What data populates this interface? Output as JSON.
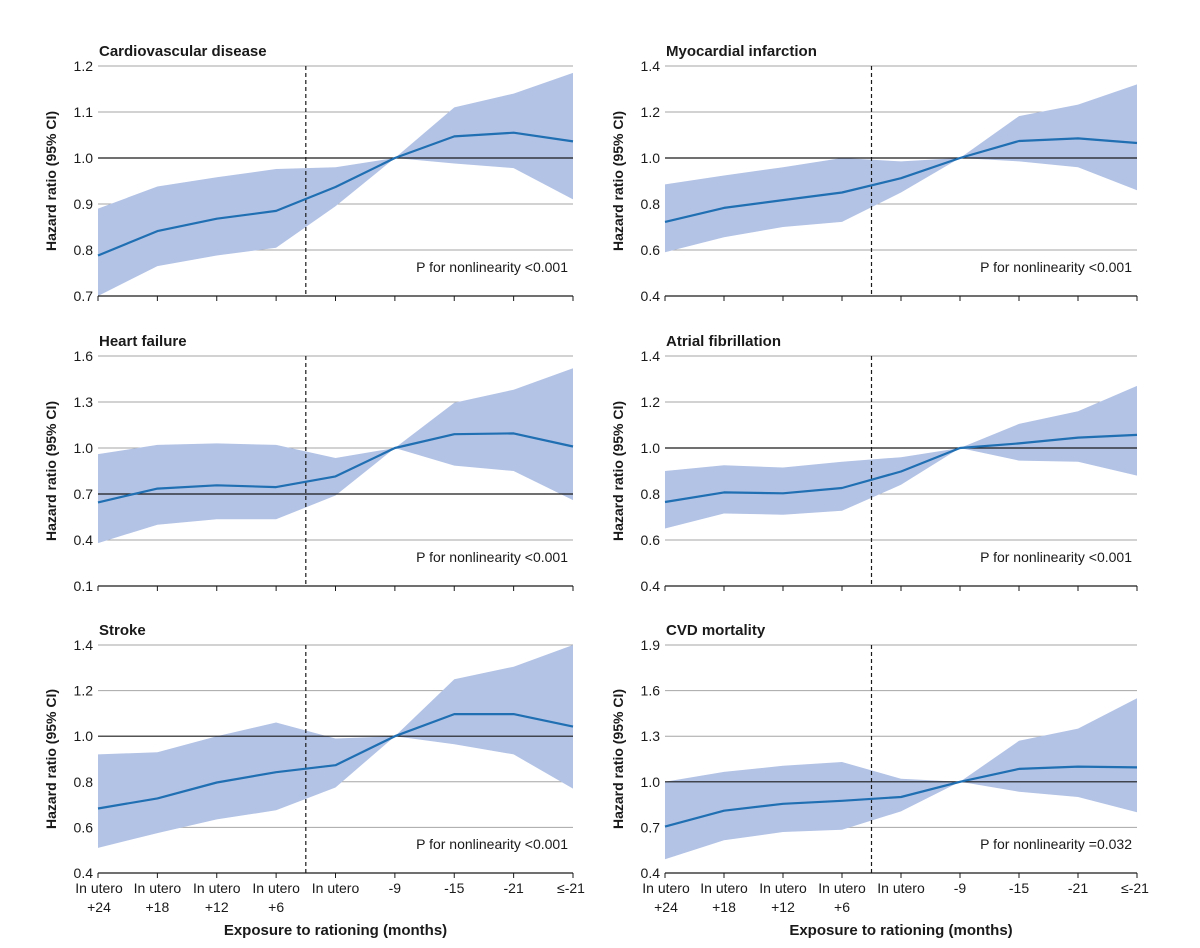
{
  "figure": {
    "xlabel": "Exposure to rationing (months)",
    "x_tick_lines": [
      [
        "In utero",
        "+24"
      ],
      [
        "In utero",
        "+18"
      ],
      [
        "In utero",
        "+12"
      ],
      [
        "In utero",
        "+6"
      ],
      [
        "In utero",
        ""
      ],
      [
        "-9",
        ""
      ],
      [
        "-15",
        ""
      ],
      [
        "-21",
        ""
      ],
      [
        "≤-21",
        ""
      ]
    ],
    "colors": {
      "line": "#1f6fb2",
      "band": "#b3c3e6",
      "grid": "#a6a6a6",
      "reference": "#1a1a1a"
    }
  },
  "chart_data": [
    {
      "type": "line",
      "title": "Cardiovascular disease",
      "ylabel": "Hazard ratio (95% CI)",
      "xlabel": "Exposure to rationing (months)",
      "categories": [
        "In utero +24",
        "In utero +18",
        "In utero +12",
        "In utero +6",
        "In utero",
        "-9",
        "-15",
        "-21",
        "≤-21"
      ],
      "series": [
        {
          "name": "Hazard ratio",
          "values": [
            0.788,
            0.841,
            0.868,
            0.885,
            0.937,
            1.0,
            1.047,
            1.055,
            1.036
          ]
        },
        {
          "name": "Lower 95% CI",
          "values": [
            0.7,
            0.765,
            0.788,
            0.805,
            0.895,
            1.0,
            0.988,
            0.978,
            0.91
          ]
        },
        {
          "name": "Upper 95% CI",
          "values": [
            0.89,
            0.938,
            0.958,
            0.976,
            0.98,
            1.0,
            1.11,
            1.14,
            1.185
          ]
        }
      ],
      "ylim": [
        0.7,
        1.2
      ],
      "yticks": [
        "0.7",
        "0.8",
        "0.9",
        "1.0",
        "1.1",
        "1.2"
      ],
      "reference_line": 1.0,
      "annotation": "P for nonlinearity <0.001"
    },
    {
      "type": "line",
      "title": "Myocardial infarction",
      "ylabel": "Hazard ratio (95% CI)",
      "xlabel": "Exposure to rationing (months)",
      "categories": [
        "In utero +24",
        "In utero +18",
        "In utero +12",
        "In utero +6",
        "In utero",
        "-9",
        "-15",
        "-21",
        "≤-21"
      ],
      "series": [
        {
          "name": "Hazard ratio",
          "values": [
            0.722,
            0.783,
            0.817,
            0.85,
            0.912,
            1.0,
            1.074,
            1.085,
            1.065
          ]
        },
        {
          "name": "Lower 95% CI",
          "values": [
            0.59,
            0.655,
            0.7,
            0.722,
            0.85,
            1.0,
            0.985,
            0.96,
            0.86
          ]
        },
        {
          "name": "Upper 95% CI",
          "values": [
            0.885,
            0.924,
            0.96,
            1.0,
            0.985,
            1.0,
            1.182,
            1.232,
            1.32
          ]
        }
      ],
      "ylim": [
        0.4,
        1.4
      ],
      "yticks": [
        "0.4",
        "0.6",
        "0.8",
        "1.0",
        "1.2",
        "1.4"
      ],
      "reference_line": 1.0,
      "annotation": "P for nonlinearity <0.001"
    },
    {
      "type": "line",
      "title": "Heart failure",
      "ylabel": "Hazard ratio (95% CI)",
      "xlabel": "Exposure to rationing (months)",
      "categories": [
        "In utero +24",
        "In utero +18",
        "In utero +12",
        "In utero +6",
        "In utero",
        "-9",
        "-15",
        "-21",
        "≤-21"
      ],
      "series": [
        {
          "name": "Hazard ratio",
          "values": [
            0.645,
            0.735,
            0.757,
            0.745,
            0.815,
            1.0,
            1.09,
            1.095,
            1.01
          ]
        },
        {
          "name": "Lower 95% CI",
          "values": [
            0.38,
            0.5,
            0.535,
            0.535,
            0.69,
            1.0,
            0.885,
            0.85,
            0.66
          ]
        },
        {
          "name": "Upper 95% CI",
          "values": [
            0.96,
            1.02,
            1.03,
            1.02,
            0.935,
            1.0,
            1.295,
            1.38,
            1.52
          ]
        }
      ],
      "ylim": [
        0.1,
        1.6
      ],
      "yticks": [
        "0.1",
        "0.4",
        "0.7",
        "1.0",
        "1.3",
        "1.6"
      ],
      "reference_line": 0.7,
      "annotation": "P for nonlinearity <0.001"
    },
    {
      "type": "line",
      "title": "Atrial fibrillation",
      "ylabel": "Hazard ratio (95% CI)",
      "xlabel": "Exposure to rationing (months)",
      "categories": [
        "In utero +24",
        "In utero +18",
        "In utero +12",
        "In utero +6",
        "In utero",
        "-9",
        "-15",
        "-21",
        "≤-21"
      ],
      "series": [
        {
          "name": "Hazard ratio",
          "values": [
            0.765,
            0.807,
            0.803,
            0.826,
            0.898,
            1.0,
            1.02,
            1.045,
            1.057
          ]
        },
        {
          "name": "Lower 95% CI",
          "values": [
            0.65,
            0.715,
            0.71,
            0.727,
            0.84,
            1.0,
            0.945,
            0.94,
            0.88
          ]
        },
        {
          "name": "Upper 95% CI",
          "values": [
            0.9,
            0.925,
            0.915,
            0.94,
            0.96,
            1.0,
            1.105,
            1.16,
            1.27
          ]
        }
      ],
      "ylim": [
        0.4,
        1.4
      ],
      "yticks": [
        "0.4",
        "0.6",
        "0.8",
        "1.0",
        "1.2",
        "1.4"
      ],
      "reference_line": 1.0,
      "annotation": "P for nonlinearity <0.001"
    },
    {
      "type": "line",
      "title": "Stroke",
      "ylabel": "Hazard ratio (95% CI)",
      "xlabel": "Exposure to rationing (months)",
      "categories": [
        "In utero +24",
        "In utero +18",
        "In utero +12",
        "In utero +6",
        "In utero",
        "-9",
        "-15",
        "-21",
        "≤-21"
      ],
      "series": [
        {
          "name": "Hazard ratio",
          "values": [
            0.683,
            0.727,
            0.797,
            0.842,
            0.873,
            1.0,
            1.097,
            1.097,
            1.042
          ]
        },
        {
          "name": "Lower 95% CI",
          "values": [
            0.51,
            0.575,
            0.635,
            0.675,
            0.775,
            1.0,
            0.965,
            0.92,
            0.77
          ]
        },
        {
          "name": "Upper 95% CI",
          "values": [
            0.92,
            0.93,
            1.0,
            1.06,
            0.99,
            1.0,
            1.25,
            1.305,
            1.4
          ]
        }
      ],
      "ylim": [
        0.4,
        1.4
      ],
      "yticks": [
        "0.4",
        "0.6",
        "0.8",
        "1.0",
        "1.2",
        "1.4"
      ],
      "reference_line": 1.0,
      "annotation": "P for nonlinearity <0.001"
    },
    {
      "type": "line",
      "title": "CVD mortality",
      "ylabel": "Hazard ratio (95% CI)",
      "xlabel": "Exposure to rationing (months)",
      "categories": [
        "In utero +24",
        "In utero +18",
        "In utero +12",
        "In utero +6",
        "In utero",
        "-9",
        "-15",
        "-21",
        "≤-21"
      ],
      "series": [
        {
          "name": "Hazard ratio",
          "values": [
            0.705,
            0.81,
            0.855,
            0.875,
            0.9,
            1.0,
            1.085,
            1.1,
            1.095
          ]
        },
        {
          "name": "Lower 95% CI",
          "values": [
            0.49,
            0.615,
            0.67,
            0.685,
            0.805,
            1.0,
            0.935,
            0.9,
            0.8
          ]
        },
        {
          "name": "Upper 95% CI",
          "values": [
            1.0,
            1.065,
            1.105,
            1.13,
            1.02,
            1.0,
            1.27,
            1.35,
            1.55
          ]
        }
      ],
      "ylim": [
        0.4,
        1.9
      ],
      "yticks": [
        "0.4",
        "0.7",
        "1.0",
        "1.3",
        "1.6",
        "1.9"
      ],
      "reference_line": 1.0,
      "annotation": "P for nonlinearity =0.032"
    }
  ]
}
